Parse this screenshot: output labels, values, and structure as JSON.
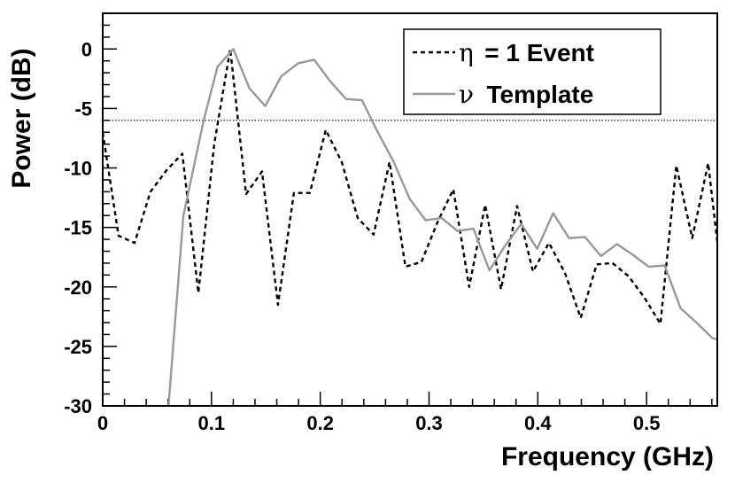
{
  "chart_data": {
    "type": "line",
    "title": "",
    "xlabel": "Frequency (GHz)",
    "ylabel": "Power (dB)",
    "xlim": [
      0,
      0.565
    ],
    "ylim": [
      -30,
      3
    ],
    "x_ticks": [
      0,
      0.1,
      0.2,
      0.3,
      0.4,
      0.5
    ],
    "x_tick_labels": [
      "0",
      "0.1",
      "0.2",
      "0.3",
      "0.4",
      "0.5"
    ],
    "y_ticks": [
      0,
      -5,
      -10,
      -15,
      -20,
      -25,
      -30
    ],
    "y_tick_labels": [
      "0",
      "-5",
      "-10",
      "-15",
      "-20",
      "-25",
      "-30"
    ],
    "grid": false,
    "legend_position": "top-right",
    "series": [
      {
        "name": "η = 1 Event",
        "legend_symbol": "η",
        "legend_text": "= 1 Event",
        "style": "dashed",
        "color": "#000000",
        "x": [
          0,
          0.0146,
          0.0293,
          0.0439,
          0.0586,
          0.0732,
          0.0879,
          0.1025,
          0.1172,
          0.1318,
          0.1465,
          0.1611,
          0.1758,
          0.1904,
          0.2051,
          0.2197,
          0.2344,
          0.249,
          0.2637,
          0.2783,
          0.293,
          0.3076,
          0.3223,
          0.3369,
          0.3516,
          0.3662,
          0.3809,
          0.3955,
          0.4102,
          0.4248,
          0.4395,
          0.4541,
          0.4688,
          0.4834,
          0.498,
          0.5127,
          0.5273,
          0.542,
          0.5566,
          0.565
        ],
        "y": [
          -7,
          -15.7,
          -16.3,
          -12,
          -10.2,
          -8.8,
          -20.5,
          -8,
          0,
          -12.2,
          -10.3,
          -21.5,
          -12.1,
          -12.1,
          -6.8,
          -9.5,
          -14.2,
          -15.6,
          -9.5,
          -18.3,
          -17.9,
          -14.6,
          -11.8,
          -20,
          -13.1,
          -20.2,
          -13.2,
          -18.7,
          -16.3,
          -18.8,
          -22.6,
          -18.1,
          -18,
          -19.1,
          -20.9,
          -23.1,
          -9.8,
          -15.9,
          -9.6,
          -16.2
        ]
      },
      {
        "name": "ν Template",
        "legend_symbol": "ν",
        "legend_text": "Template",
        "style": "solid",
        "color": "#999999",
        "x": [
          0.0605,
          0.0742,
          0.0928,
          0.1055,
          0.1201,
          0.1348,
          0.1494,
          0.1641,
          0.1797,
          0.1943,
          0.209,
          0.2236,
          0.2383,
          0.2529,
          0.2676,
          0.2822,
          0.2969,
          0.3115,
          0.3262,
          0.3408,
          0.3555,
          0.3701,
          0.3848,
          0.3994,
          0.4141,
          0.4287,
          0.4434,
          0.458,
          0.4727,
          0.4873,
          0.502,
          0.5166,
          0.5313,
          0.5459,
          0.5605,
          0.565
        ],
        "y": [
          -30,
          -14,
          -6,
          -1.5,
          0,
          -3.3,
          -4.8,
          -2.3,
          -1.2,
          -0.9,
          -2.7,
          -4.2,
          -4.3,
          -7,
          -9.5,
          -12.6,
          -14.4,
          -14.2,
          -15.3,
          -15.1,
          -18.6,
          -16.5,
          -14.7,
          -16.8,
          -13.8,
          -15.9,
          -15.8,
          -17.4,
          -16.4,
          -17.3,
          -18.3,
          -18.2,
          -21.8,
          -23,
          -24.3,
          -24.4
        ]
      }
    ],
    "reference_line": {
      "y": -6,
      "style": "dotted",
      "color": "#000000"
    }
  }
}
